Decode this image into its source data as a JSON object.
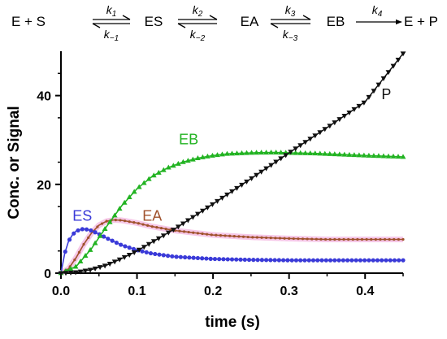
{
  "scheme": {
    "species": [
      "E + S",
      "ES",
      "EA",
      "EB",
      "E + P"
    ],
    "rates": [
      {
        "forward": "k1",
        "reverse": "k−1"
      },
      {
        "forward": "k2",
        "reverse": "k−2"
      },
      {
        "forward": "k3",
        "reverse": "k−3"
      },
      {
        "forward": "k4",
        "reverse": ""
      }
    ]
  },
  "chart_data": {
    "type": "line",
    "xlabel": "time (s)",
    "ylabel": "Conc. or Signal",
    "xlim": [
      0,
      0.45
    ],
    "ylim": [
      0,
      50
    ],
    "xticks": [
      "0.0",
      "0.1",
      "0.2",
      "0.3",
      "0.4"
    ],
    "xtick_values": [
      0,
      0.1,
      0.2,
      0.3,
      0.4
    ],
    "yticks": [
      "0",
      "20",
      "40"
    ],
    "ytick_values": [
      0,
      20,
      40
    ],
    "grid": false,
    "series": [
      {
        "name": "ES",
        "color": "#3a3ad8",
        "marker": "circle",
        "x": [
          0,
          0.005,
          0.01,
          0.015,
          0.02,
          0.03,
          0.04,
          0.05,
          0.06,
          0.08,
          0.1,
          0.12,
          0.15,
          0.2,
          0.25,
          0.3,
          0.35,
          0.4,
          0.45
        ],
        "y": [
          0,
          4.5,
          7.2,
          8.6,
          9.5,
          10.0,
          9.6,
          8.8,
          7.9,
          6.3,
          5.2,
          4.4,
          3.7,
          3.2,
          3.0,
          2.9,
          2.9,
          2.9,
          2.9
        ]
      },
      {
        "name": "EA",
        "color": "#a0522d",
        "marker": "dot",
        "x": [
          0,
          0.01,
          0.02,
          0.03,
          0.04,
          0.05,
          0.06,
          0.07,
          0.08,
          0.1,
          0.12,
          0.15,
          0.2,
          0.25,
          0.3,
          0.35,
          0.4,
          0.45
        ],
        "y": [
          0,
          1.0,
          3.5,
          6.5,
          9.0,
          10.8,
          11.7,
          12.0,
          11.9,
          11.3,
          10.5,
          9.6,
          8.6,
          8.1,
          7.8,
          7.6,
          7.6,
          7.6
        ]
      },
      {
        "name": "EB",
        "color": "#22b322",
        "marker": "triangle-up",
        "x": [
          0,
          0.02,
          0.04,
          0.06,
          0.08,
          0.1,
          0.12,
          0.14,
          0.16,
          0.18,
          0.2,
          0.22,
          0.25,
          0.28,
          0.3,
          0.33,
          0.36,
          0.4,
          0.45
        ],
        "y": [
          0,
          1.5,
          5.5,
          10.5,
          15.2,
          19.0,
          21.8,
          23.7,
          25.0,
          25.9,
          26.5,
          26.9,
          27.1,
          27.2,
          27.1,
          27.0,
          26.8,
          26.5,
          26.2
        ]
      },
      {
        "name": "P",
        "color": "#111111",
        "marker": "triangle-down",
        "x": [
          0,
          0.02,
          0.04,
          0.06,
          0.08,
          0.1,
          0.15,
          0.2,
          0.25,
          0.3,
          0.35,
          0.4,
          0.45
        ],
        "y": [
          0,
          0.2,
          0.8,
          1.8,
          3.3,
          5.0,
          10.0,
          15.6,
          21.3,
          27.1,
          32.8,
          38.6,
          49.5
        ]
      }
    ]
  }
}
